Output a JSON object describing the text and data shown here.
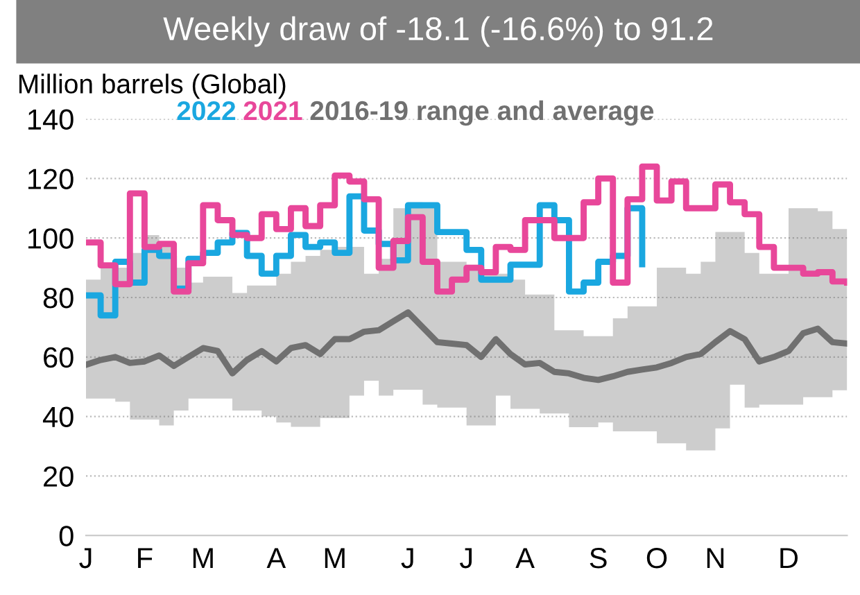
{
  "chart_data": {
    "type": "step",
    "title": "Weekly draw of -18.1 (-16.6%) to 91.2",
    "ylabel": "Million barrels (Global)",
    "categories": [
      "J",
      null,
      null,
      null,
      "F",
      null,
      null,
      null,
      "M",
      null,
      null,
      null,
      null,
      "A",
      null,
      null,
      null,
      "M",
      null,
      null,
      null,
      null,
      "J",
      null,
      null,
      null,
      "J",
      null,
      null,
      null,
      "A",
      null,
      null,
      null,
      null,
      "S",
      null,
      null,
      null,
      "O",
      null,
      null,
      null,
      "N",
      null,
      null,
      null,
      null,
      "D",
      null,
      null,
      null,
      null
    ],
    "ylim": [
      0,
      140
    ],
    "yticks": [
      0,
      20,
      40,
      60,
      80,
      100,
      120,
      140
    ],
    "grid": "y",
    "legend": "top",
    "series": [
      {
        "name": "2016-19 range and average",
        "type": "line",
        "color": "#707070",
        "values": [
          57.4,
          59,
          60,
          58,
          58.5,
          60.5,
          57,
          60,
          63,
          62,
          54.5,
          59,
          62,
          58.5,
          63,
          64,
          61,
          66,
          66,
          68.5,
          69,
          72,
          75,
          70,
          65,
          64.5,
          64,
          60,
          66,
          61,
          57.5,
          58,
          55,
          54.5,
          53,
          52.3,
          53.5,
          55,
          55.8,
          56.5,
          58,
          60,
          61,
          65,
          68.7,
          66,
          58.5,
          60,
          62,
          68,
          69.5,
          65,
          64.5
        ],
        "lower": [
          46,
          46,
          45,
          39,
          39,
          37,
          42,
          46,
          46,
          46,
          42,
          42,
          40,
          38,
          36.5,
          36.5,
          39.5,
          39.5,
          47,
          52,
          47,
          49,
          49,
          44,
          43,
          43,
          37,
          37,
          47,
          42.6,
          42.6,
          41,
          41,
          36.4,
          36.4,
          38,
          35,
          35,
          35,
          31,
          31,
          28.6,
          28.6,
          36,
          50.7,
          43,
          44,
          44,
          44,
          46.5,
          46.5,
          48.8,
          48.8
        ],
        "upper": [
          86,
          90,
          90,
          95,
          101,
          98,
          90,
          85,
          87,
          87,
          81.5,
          84,
          84,
          88,
          92,
          94,
          96,
          97,
          97,
          88,
          93,
          110,
          112,
          110,
          92,
          92,
          91,
          88,
          88,
          86,
          81,
          81,
          69,
          69,
          67,
          67,
          73,
          77,
          77,
          90,
          90,
          88,
          92,
          102,
          102,
          95,
          88,
          88,
          110,
          110,
          109,
          103,
          85
        ]
      },
      {
        "name": "2022",
        "color": "#1aa7e0",
        "values": [
          80.7,
          74,
          92,
          85,
          96,
          94,
          83,
          93,
          95,
          98.5,
          101.7,
          94,
          88,
          94,
          101,
          97,
          98.5,
          95,
          114,
          102.5,
          98,
          92.5,
          111,
          111,
          102,
          102,
          96,
          86,
          86,
          91,
          91,
          111,
          106,
          82,
          85,
          92,
          94,
          110,
          91.2,
          null,
          null,
          null,
          null,
          null,
          null,
          null,
          null,
          null,
          null,
          null,
          null,
          null,
          null
        ]
      },
      {
        "name": "2021",
        "color": "#e8479a",
        "values": [
          98.5,
          90.8,
          84.5,
          115,
          97,
          98,
          82,
          91.5,
          111,
          106,
          101,
          100,
          108,
          103,
          110,
          104,
          111,
          121,
          119,
          113,
          90,
          99,
          107,
          92,
          82,
          86,
          90,
          88.5,
          97,
          96,
          106,
          106,
          100,
          100,
          112,
          120,
          85,
          113,
          124,
          112.6,
          119,
          110,
          110,
          118,
          112,
          108,
          97,
          90,
          90,
          88,
          88.5,
          85.4,
          85
        ]
      }
    ]
  }
}
